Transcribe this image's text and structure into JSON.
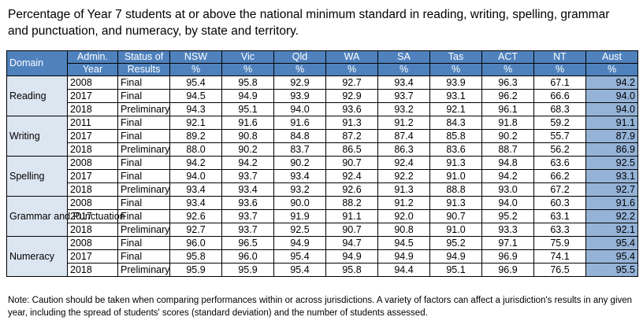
{
  "title": "Percentage of Year 7 students at or above the national minimum standard in reading, writing, spelling, grammar and punctuation, and numeracy, by state and territory.",
  "headers": {
    "domain": "Domain",
    "year": [
      "Admin.",
      "Year"
    ],
    "status": [
      "Status of",
      "Results"
    ],
    "jurisdictions": [
      {
        "name": "NSW",
        "unit": "%"
      },
      {
        "name": "Vic",
        "unit": "%"
      },
      {
        "name": "Qld",
        "unit": "%"
      },
      {
        "name": "WA",
        "unit": "%"
      },
      {
        "name": "SA",
        "unit": "%"
      },
      {
        "name": "Tas",
        "unit": "%"
      },
      {
        "name": "ACT",
        "unit": "%"
      },
      {
        "name": "NT",
        "unit": "%"
      },
      {
        "name": "Aust",
        "unit": "%"
      }
    ]
  },
  "groups": [
    {
      "domain": "Reading",
      "rows": [
        {
          "year": "2008",
          "status": "Final",
          "values": [
            "95.4",
            "95.8",
            "92.9",
            "92.7",
            "93.4",
            "93.9",
            "96.3",
            "67.1",
            "94.2"
          ]
        },
        {
          "year": "2017",
          "status": "Final",
          "values": [
            "94.5",
            "94.9",
            "93.9",
            "92.9",
            "93.7",
            "93.1",
            "96.2",
            "66.6",
            "94.0"
          ]
        },
        {
          "year": "2018",
          "status": "Preliminary",
          "values": [
            "94.3",
            "95.1",
            "94.0",
            "93.6",
            "93.2",
            "92.1",
            "96.1",
            "68.3",
            "94.0"
          ]
        }
      ]
    },
    {
      "domain": "Writing",
      "rows": [
        {
          "year": "2011",
          "status": "Final",
          "values": [
            "92.1",
            "91.6",
            "91.6",
            "91.3",
            "91.2",
            "84.3",
            "91.8",
            "59.2",
            "91.1"
          ]
        },
        {
          "year": "2017",
          "status": "Final",
          "values": [
            "89.2",
            "90.8",
            "84.8",
            "87.2",
            "87.4",
            "85.8",
            "90.2",
            "55.7",
            "87.9"
          ]
        },
        {
          "year": "2018",
          "status": "Preliminary",
          "values": [
            "88.0",
            "90.2",
            "83.7",
            "86.5",
            "86.3",
            "83.6",
            "88.7",
            "56.2",
            "86.9"
          ]
        }
      ]
    },
    {
      "domain": "Spelling",
      "rows": [
        {
          "year": "2008",
          "status": "Final",
          "values": [
            "94.2",
            "94.2",
            "90.2",
            "90.7",
            "92.4",
            "91.3",
            "94.8",
            "63.6",
            "92.5"
          ]
        },
        {
          "year": "2017",
          "status": "Final",
          "values": [
            "94.0",
            "93.7",
            "93.4",
            "92.4",
            "92.2",
            "91.0",
            "94.2",
            "66.2",
            "93.1"
          ]
        },
        {
          "year": "2018",
          "status": "Preliminary",
          "values": [
            "93.4",
            "93.4",
            "93.2",
            "92.6",
            "91.3",
            "88.8",
            "93.0",
            "67.2",
            "92.7"
          ]
        }
      ]
    },
    {
      "domain": "Grammar and Punctuation",
      "rows": [
        {
          "year": "2008",
          "status": "Final",
          "values": [
            "93.4",
            "93.6",
            "90.0",
            "88.2",
            "91.2",
            "91.3",
            "94.0",
            "60.3",
            "91.6"
          ]
        },
        {
          "year": "2017",
          "status": "Final",
          "values": [
            "92.6",
            "93.7",
            "91.9",
            "91.1",
            "92.0",
            "90.7",
            "95.2",
            "63.1",
            "92.2"
          ]
        },
        {
          "year": "2018",
          "status": "Preliminary",
          "values": [
            "92.7",
            "93.7",
            "92.5",
            "90.7",
            "90.8",
            "91.0",
            "93.3",
            "63.3",
            "92.1"
          ]
        }
      ]
    },
    {
      "domain": "Numeracy",
      "rows": [
        {
          "year": "2008",
          "status": "Final",
          "values": [
            "96.0",
            "96.5",
            "94.9",
            "94.7",
            "94.5",
            "95.2",
            "97.1",
            "75.9",
            "95.4"
          ]
        },
        {
          "year": "2017",
          "status": "Final",
          "values": [
            "95.8",
            "96.0",
            "95.4",
            "94.9",
            "94.9",
            "94.9",
            "96.9",
            "74.1",
            "95.4"
          ]
        },
        {
          "year": "2018",
          "status": "Preliminary",
          "values": [
            "95.9",
            "95.9",
            "95.4",
            "95.8",
            "94.4",
            "95.1",
            "96.9",
            "76.5",
            "95.5"
          ]
        }
      ]
    }
  ],
  "note": "Note: Caution should be taken when comparing performances within or across jurisdictions. A variety of factors can affect a jurisdiction's results in any given year, including the spread of students' scores (standard deviation) and the number of students assessed.",
  "colors": {
    "header": "#4F81BD",
    "domain_cell": "#DCE6F1",
    "aust_column": "#95B3D7"
  }
}
